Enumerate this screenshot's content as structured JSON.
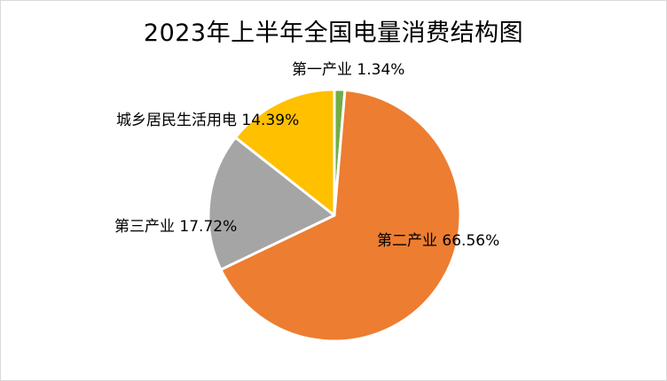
{
  "chart_data": {
    "type": "pie",
    "title": "2023年上半年全国电量消费结构图",
    "slices": [
      {
        "name": "第一产业",
        "value": 1.34,
        "label": "1.34%",
        "color": "#70ad47"
      },
      {
        "name": "第二产业",
        "value": 66.56,
        "label": "66.56%",
        "color": "#ed7d31"
      },
      {
        "name": "第三产业",
        "value": 17.72,
        "label": "17.72%",
        "color": "#a5a5a5"
      },
      {
        "name": "城乡居民生活用电",
        "value": 14.39,
        "label": "14.39%",
        "color": "#ffc000"
      }
    ],
    "start_angle_deg": 0,
    "direction": "clockwise",
    "legend": "none",
    "data_labels": "category name and percentage"
  }
}
